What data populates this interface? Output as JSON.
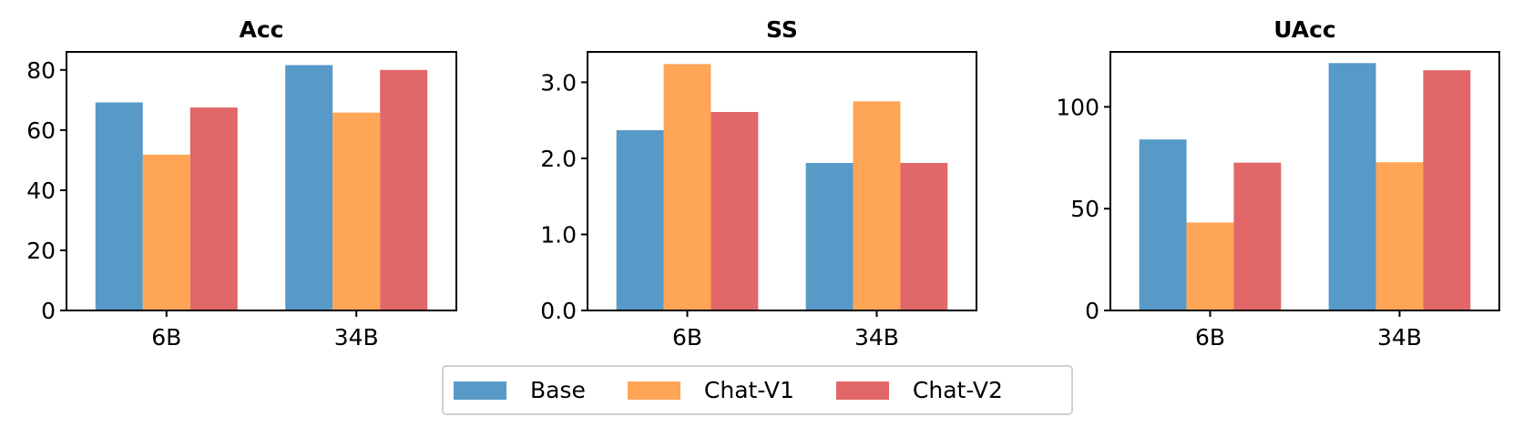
{
  "chart_data": [
    {
      "type": "bar",
      "title": "Acc",
      "categories": [
        "6B",
        "34B"
      ],
      "ylim": [
        0,
        86
      ],
      "yticks": [
        0,
        20,
        40,
        60,
        80
      ],
      "ytick_labels": [
        "0",
        "20",
        "40",
        "60",
        "80"
      ],
      "series": [
        {
          "name": "Base",
          "values": [
            69.2,
            81.6
          ]
        },
        {
          "name": "Chat-V1",
          "values": [
            51.8,
            65.8
          ]
        },
        {
          "name": "Chat-V2",
          "values": [
            67.5,
            80.0
          ]
        }
      ]
    },
    {
      "type": "bar",
      "title": "SS",
      "categories": [
        "6B",
        "34B"
      ],
      "ylim": [
        0,
        3.4
      ],
      "yticks": [
        0,
        1,
        2,
        3
      ],
      "ytick_labels": [
        "0.0",
        "1.0",
        "2.0",
        "3.0"
      ],
      "series": [
        {
          "name": "Base",
          "values": [
            2.37,
            1.94
          ]
        },
        {
          "name": "Chat-V1",
          "values": [
            3.24,
            2.75
          ]
        },
        {
          "name": "Chat-V2",
          "values": [
            2.61,
            1.94
          ]
        }
      ]
    },
    {
      "type": "bar",
      "title": "UAcc",
      "categories": [
        "6B",
        "34B"
      ],
      "ylim": [
        0,
        127
      ],
      "yticks": [
        0,
        50,
        100
      ],
      "ytick_labels": [
        "0",
        "50",
        "100"
      ],
      "series": [
        {
          "name": "Base",
          "values": [
            84.0,
            121.5
          ]
        },
        {
          "name": "Chat-V1",
          "values": [
            43.2,
            72.8
          ]
        },
        {
          "name": "Chat-V2",
          "values": [
            72.6,
            118.0
          ]
        }
      ]
    }
  ],
  "legend": {
    "placement": "bottom-center",
    "items": [
      {
        "label": "Base",
        "color": "#5799c7"
      },
      {
        "label": "Chat-V1",
        "color": "#ffa556"
      },
      {
        "label": "Chat-V2",
        "color": "#e16769"
      }
    ]
  }
}
